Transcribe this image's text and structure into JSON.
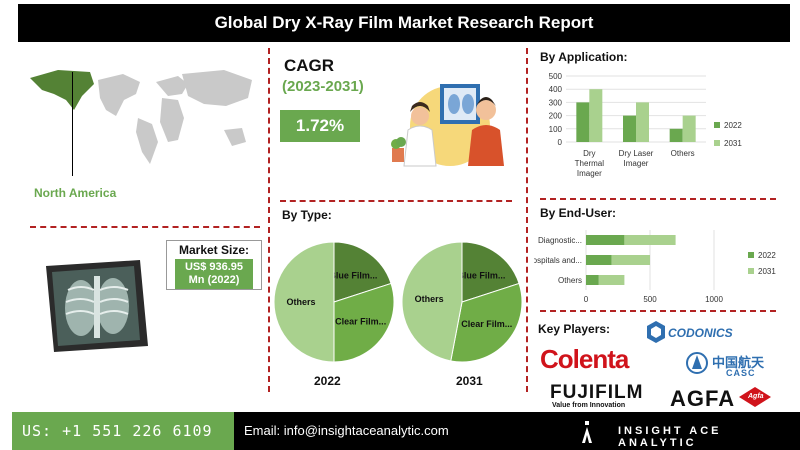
{
  "title": "Global Dry X-Ray Film Market Research Report",
  "region": {
    "label": "North America"
  },
  "cagr": {
    "title": "CAGR",
    "years": "(2023-2031)",
    "value": "1.72%"
  },
  "market_size": {
    "title": "Market Size:",
    "value_line1": "US$ 936.95",
    "value_line2": "Mn (2022)"
  },
  "colors": {
    "dark_green": "#6aa84f",
    "light_green": "#a9d18e",
    "pie_dark": "#548235",
    "pie_mid": "#70ad47",
    "pie_light": "#a9d18e",
    "accent_red": "#b22222"
  },
  "sections": {
    "by_application": "By Application:",
    "by_type": "By Type:",
    "by_end_user": "By End-User:",
    "key_players": "Key Players:"
  },
  "chart_data": [
    {
      "type": "bar",
      "title": "By Application:",
      "categories": [
        "Dry Thermal Imager",
        "Dry Laser Imager",
        "Others"
      ],
      "category_lines": [
        [
          "Dry",
          "Thermal",
          "Imager"
        ],
        [
          "Dry Laser",
          "Imager"
        ],
        [
          "Others"
        ]
      ],
      "series": [
        {
          "name": "2022",
          "values": [
            300,
            200,
            100
          ],
          "color": "#6aa84f"
        },
        {
          "name": "2031",
          "values": [
            400,
            300,
            200
          ],
          "color": "#a9d18e"
        }
      ],
      "ylim": [
        0,
        500
      ],
      "yticks": [
        "0",
        "100",
        "200",
        "300",
        "400",
        "500"
      ],
      "legend": "right"
    },
    {
      "type": "pie",
      "title": "By Type:",
      "caption": "2022",
      "slices": [
        {
          "label": "Blue Film...",
          "value": 20,
          "color": "#548235"
        },
        {
          "label": "Clear Film...",
          "value": 30,
          "color": "#70ad47"
        },
        {
          "label": "Others",
          "value": 50,
          "color": "#a9d18e"
        }
      ]
    },
    {
      "type": "pie",
      "caption": "2031",
      "slices": [
        {
          "label": "Blue Film...",
          "value": 20,
          "color": "#548235"
        },
        {
          "label": "Clear Film...",
          "value": 33,
          "color": "#70ad47"
        },
        {
          "label": "Others",
          "value": 47,
          "color": "#a9d18e"
        }
      ]
    },
    {
      "type": "bar",
      "orientation": "horizontal",
      "title": "By End-User:",
      "categories": [
        "Diagnostic...",
        "Hospitals and...",
        "Others"
      ],
      "series": [
        {
          "name": "2022",
          "values": [
            300,
            200,
            100
          ],
          "color": "#6aa84f"
        },
        {
          "name": "2031",
          "values": [
            400,
            300,
            200
          ],
          "color": "#a9d18e"
        }
      ],
      "xlim": [
        0,
        1000
      ],
      "xticks": [
        "0",
        "500",
        "1000"
      ],
      "legend": "right"
    }
  ],
  "key_players": [
    "CODONICS",
    "Colenta",
    "中国航天",
    "CASC",
    "FUJIFILM",
    "Value from Innovation",
    "AGFA",
    "Agfa"
  ],
  "footer": {
    "phone": "US: +1 551 226 6109",
    "email": "Email: info@insightaceanalytic.com",
    "brand": "INSIGHT ACE ANALYTIC"
  }
}
